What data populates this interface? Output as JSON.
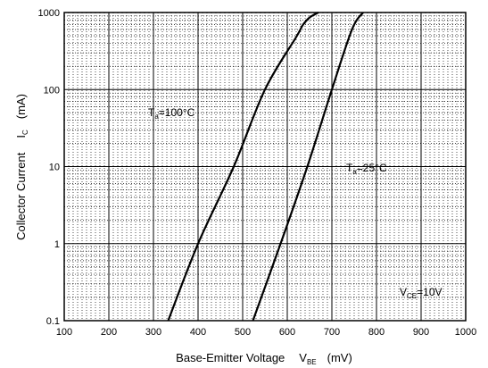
{
  "chart_data": {
    "type": "line",
    "xlabel": {
      "main": "Base-Emitter Voltage",
      "symbol": "V",
      "subscript": "BE",
      "unit": "(mV)"
    },
    "ylabel": {
      "main": "Collector Current",
      "symbol": "I",
      "subscript": "C",
      "unit": "(mA)"
    },
    "x_scale": "linear",
    "y_scale": "log",
    "xlim": [
      100,
      1000
    ],
    "ylim": [
      0.1,
      1000
    ],
    "x_ticks": [
      "100",
      "200",
      "300",
      "400",
      "500",
      "600",
      "700",
      "800",
      "900",
      "1000"
    ],
    "y_ticks": [
      "0.1",
      "1",
      "10",
      "100",
      "1000"
    ],
    "grid": true,
    "series": [
      {
        "name": "Ta=100°C",
        "x": [
          333,
          400,
          480,
          550,
          620,
          635,
          650,
          670
        ],
        "y": [
          0.1,
          1,
          10,
          100,
          480,
          690,
          860,
          1000
        ]
      },
      {
        "name": "Ta=25°C",
        "x": [
          523,
          585,
          645,
          700,
          745,
          770
        ],
        "y": [
          0.1,
          1,
          10,
          100,
          600,
          1000
        ]
      }
    ],
    "annotations": [
      {
        "symbol": "T",
        "subscript": "a",
        "rest": "=100°C"
      },
      {
        "symbol": "T",
        "subscript": "a",
        "rest": "=25°C"
      },
      {
        "symbol": "V",
        "subscript": "CE",
        "rest": "=10V"
      }
    ]
  }
}
